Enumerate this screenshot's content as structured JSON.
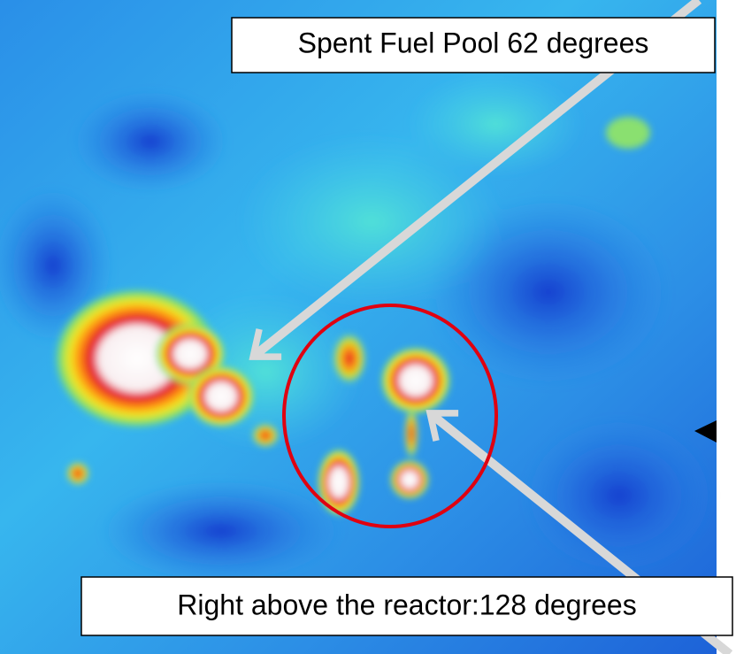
{
  "annotations": [
    {
      "label": "Spent Fuel Pool 62 degrees"
    },
    {
      "label": "Right above the reactor:128 degrees"
    }
  ]
}
